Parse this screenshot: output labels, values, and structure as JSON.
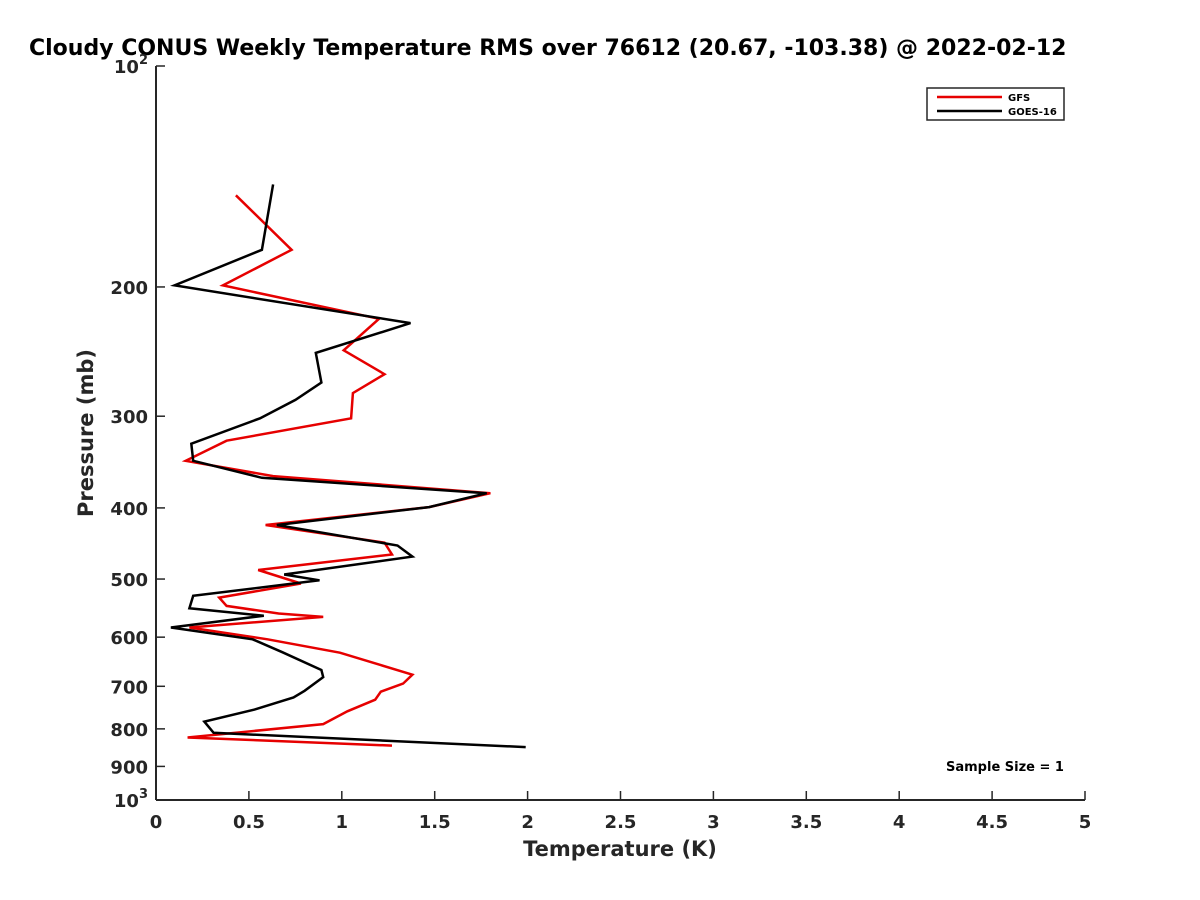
{
  "chart_data": {
    "type": "line",
    "title": "Cloudy CONUS Weekly Temperature RMS over 76612 (20.67, -103.38) @ 2022-02-12",
    "xlabel": "Temperature (K)",
    "ylabel": "Pressure (mb)",
    "xlim": [
      0,
      5
    ],
    "ylim": [
      100,
      1000
    ],
    "y_scale": "log",
    "y_reversed": true,
    "grid": false,
    "legend_position": "top-right",
    "x_ticks": [
      0,
      0.5,
      1,
      1.5,
      2,
      2.5,
      3,
      3.5,
      4,
      4.5,
      5
    ],
    "x_tick_labels": [
      "0",
      "0.5",
      "1",
      "1.5",
      "2",
      "2.5",
      "3",
      "3.5",
      "4",
      "4.5",
      "5"
    ],
    "y_ticks": [
      100,
      200,
      300,
      400,
      500,
      600,
      700,
      800,
      900,
      1000
    ],
    "y_tick_labels": [
      {
        "base": "10",
        "exp": "2"
      },
      {
        "base": "200",
        "exp": ""
      },
      {
        "base": "300",
        "exp": ""
      },
      {
        "base": "400",
        "exp": ""
      },
      {
        "base": "500",
        "exp": ""
      },
      {
        "base": "600",
        "exp": ""
      },
      {
        "base": "700",
        "exp": ""
      },
      {
        "base": "800",
        "exp": ""
      },
      {
        "base": "900",
        "exp": ""
      },
      {
        "base": "10",
        "exp": "3"
      }
    ],
    "annotation": "Sample Size = 1",
    "series": [
      {
        "name": "GFS",
        "color": "#e60000",
        "points": [
          [
            0.43,
            150
          ],
          [
            0.73,
            178
          ],
          [
            0.36,
            199
          ],
          [
            1.2,
            221
          ],
          [
            1.01,
            244
          ],
          [
            1.23,
            263
          ],
          [
            1.06,
            279
          ],
          [
            1.05,
            302
          ],
          [
            0.38,
            324
          ],
          [
            0.16,
            345
          ],
          [
            0.63,
            362
          ],
          [
            1.8,
            382
          ],
          [
            1.47,
            399
          ],
          [
            0.59,
            422
          ],
          [
            1.23,
            446
          ],
          [
            1.27,
            463
          ],
          [
            0.55,
            486
          ],
          [
            0.78,
            507
          ],
          [
            0.34,
            530
          ],
          [
            0.38,
            544
          ],
          [
            0.66,
            557
          ],
          [
            0.9,
            563
          ],
          [
            0.18,
            582
          ],
          [
            0.6,
            604
          ],
          [
            0.99,
            630
          ],
          [
            1.21,
            655
          ],
          [
            1.38,
            675
          ],
          [
            1.33,
            694
          ],
          [
            1.21,
            712
          ],
          [
            1.18,
            730
          ],
          [
            1.03,
            757
          ],
          [
            0.9,
            788
          ],
          [
            0.17,
            822
          ],
          [
            1.27,
            843
          ]
        ]
      },
      {
        "name": "GOES-16",
        "color": "#000000",
        "points": [
          [
            0.63,
            145
          ],
          [
            0.57,
            178
          ],
          [
            0.1,
            199
          ],
          [
            1.37,
            224
          ],
          [
            0.86,
            246
          ],
          [
            0.89,
            270
          ],
          [
            0.75,
            285
          ],
          [
            0.56,
            302
          ],
          [
            0.19,
            327
          ],
          [
            0.2,
            345
          ],
          [
            0.57,
            364
          ],
          [
            1.78,
            382
          ],
          [
            1.47,
            399
          ],
          [
            0.65,
            422
          ],
          [
            1.3,
            450
          ],
          [
            1.38,
            466
          ],
          [
            0.69,
            493
          ],
          [
            0.88,
            502
          ],
          [
            0.2,
            527
          ],
          [
            0.18,
            548
          ],
          [
            0.58,
            561
          ],
          [
            0.08,
            582
          ],
          [
            0.52,
            604
          ],
          [
            0.68,
            629
          ],
          [
            0.89,
            665
          ],
          [
            0.9,
            680
          ],
          [
            0.8,
            710
          ],
          [
            0.74,
            725
          ],
          [
            0.53,
            753
          ],
          [
            0.26,
            782
          ],
          [
            0.31,
            810
          ],
          [
            1.99,
            847
          ]
        ]
      }
    ]
  }
}
